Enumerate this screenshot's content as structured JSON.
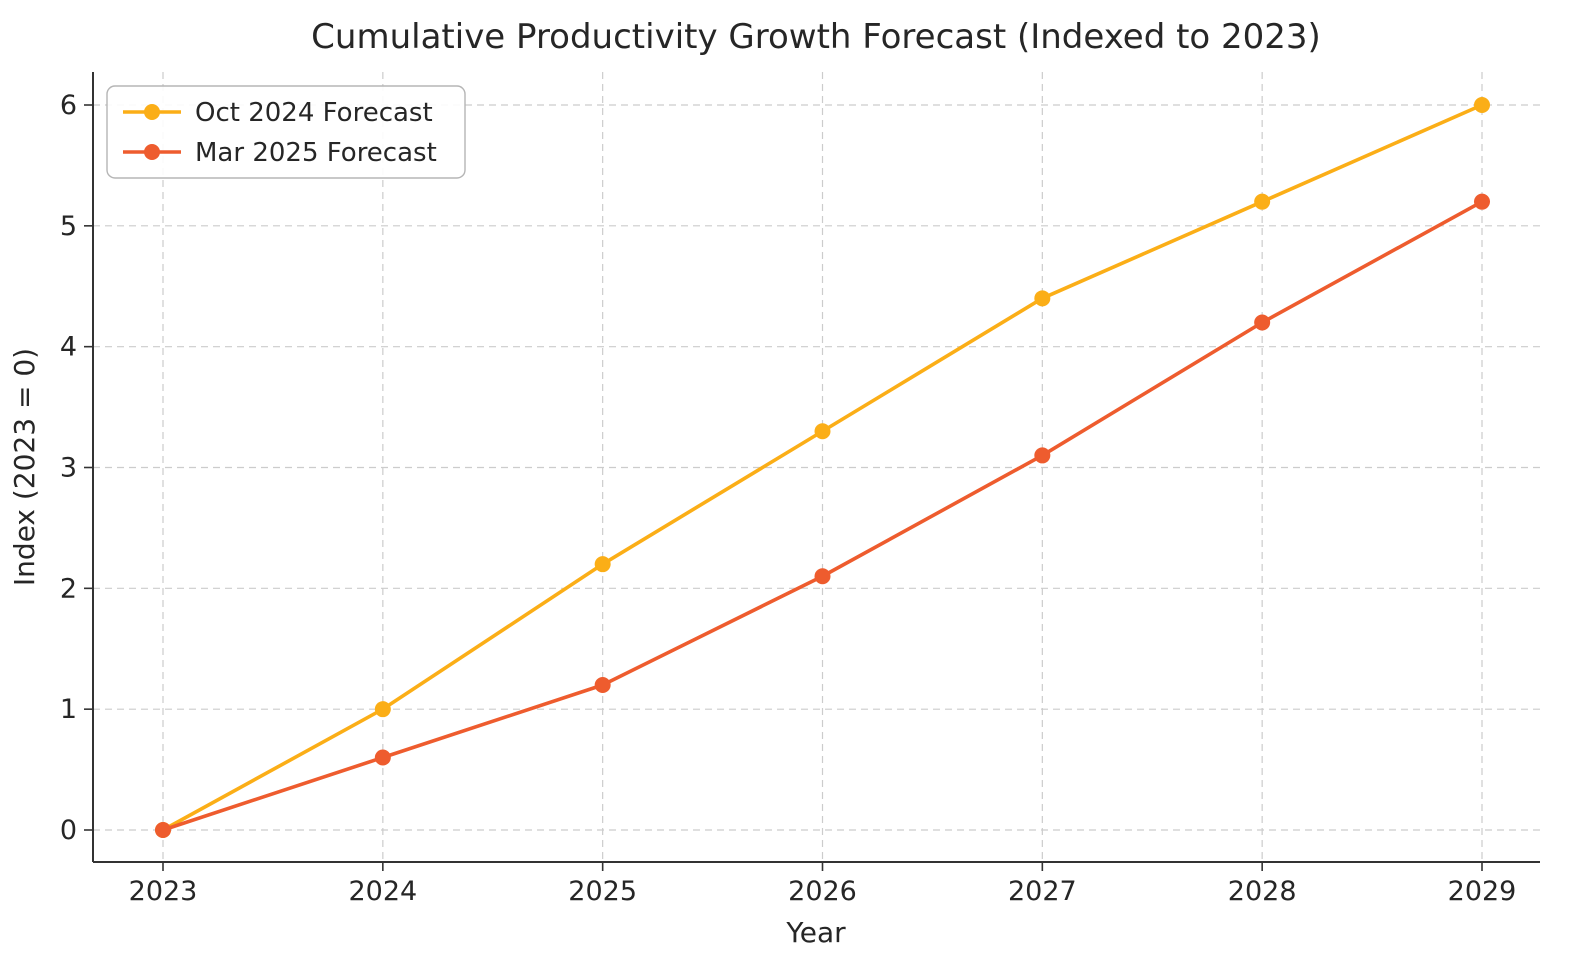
{
  "chart_data": {
    "type": "line",
    "title": "Cumulative Productivity Growth Forecast (Indexed to 2023)",
    "xlabel": "Year",
    "ylabel": "Index (2023 = 0)",
    "x": [
      2023,
      2024,
      2025,
      2026,
      2027,
      2028,
      2029
    ],
    "series": [
      {
        "name": "Oct 2024 Forecast",
        "color": "#FBAE17",
        "values": [
          0.0,
          1.0,
          2.2,
          3.3,
          4.4,
          5.2,
          6.0
        ]
      },
      {
        "name": "Mar 2025 Forecast",
        "color": "#EE5C2E",
        "values": [
          0.0,
          0.6,
          1.2,
          2.1,
          3.1,
          4.2,
          5.2
        ]
      }
    ],
    "xticks": [
      "2023",
      "2024",
      "2025",
      "2026",
      "2027",
      "2028",
      "2029"
    ],
    "yticks": [
      "0",
      "1",
      "2",
      "3",
      "4",
      "5",
      "6"
    ],
    "xlim": [
      2023,
      2029
    ],
    "ylim": [
      0,
      6
    ],
    "grid": true,
    "grid_style": "dashed",
    "legend_position": "upper left",
    "marker": "circle",
    "colors": {
      "background": "#ffffff",
      "text": "#262626",
      "grid": "#cccccc",
      "spine": "#333333",
      "legend_border": "#b5b5b5"
    }
  }
}
